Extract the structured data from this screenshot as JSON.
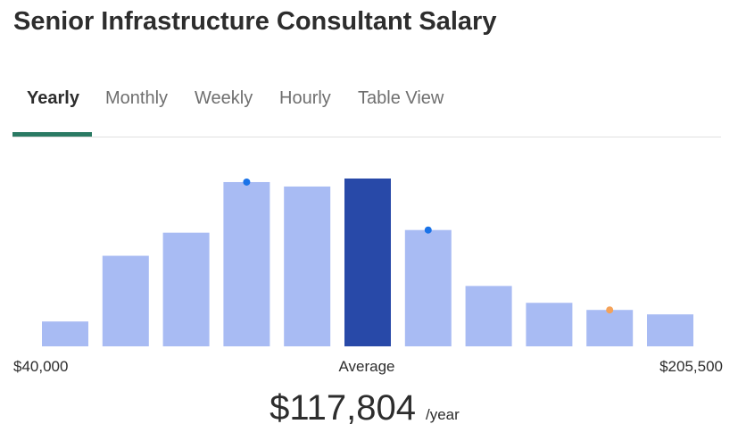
{
  "title": "Senior Infrastructure Consultant Salary",
  "tabs": [
    "Yearly",
    "Monthly",
    "Weekly",
    "Hourly",
    "Table View"
  ],
  "chart_data": {
    "type": "bar",
    "values": [
      28,
      102,
      128,
      185,
      180,
      189,
      131,
      68,
      49,
      41,
      36
    ],
    "colors": [
      "#a8bbf3",
      "#a8bbf3",
      "#a8bbf3",
      "#a8bbf3",
      "#a8bbf3",
      "#2849a8",
      "#a8bbf3",
      "#a8bbf3",
      "#a8bbf3",
      "#a8bbf3",
      "#a8bbf3"
    ],
    "ylim": [
      0,
      190
    ],
    "min_label": "$40,000",
    "center_label": "Average",
    "max_label": "$205,500"
  },
  "average": "$117,804",
  "period": "/year"
}
